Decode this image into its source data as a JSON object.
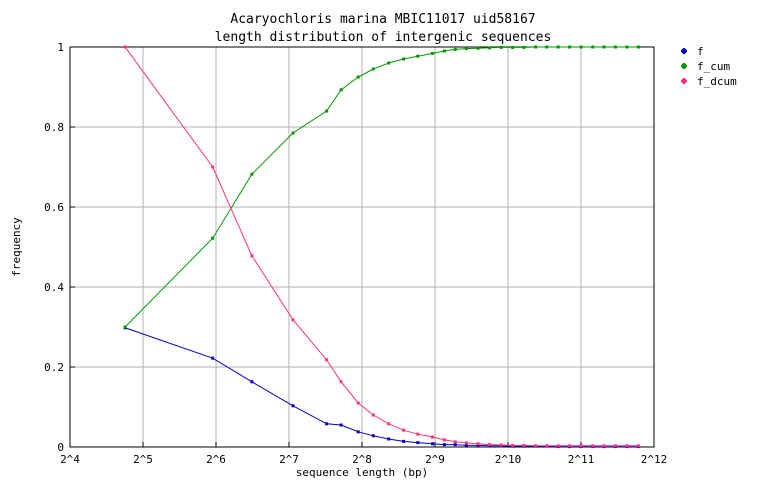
{
  "chart_data": {
    "type": "line",
    "title": "Acaryochloris marina MBIC11017 uid58167",
    "subtitle": "length distribution of intergenic sequences",
    "xlabel": "sequence length (bp)",
    "ylabel": "frequency",
    "xscale": "log2",
    "xlim": [
      16,
      4096
    ],
    "ylim": [
      0,
      1
    ],
    "grid": true,
    "legend_position": "top-right",
    "x_tick_labels": [
      "2^4",
      "2^5",
      "2^6",
      "2^7",
      "2^8",
      "2^9",
      "2^10",
      "2^11",
      "2^12"
    ],
    "y_tick_labels": [
      "0",
      "0.2",
      "0.4",
      "0.6",
      "0.8",
      "1"
    ],
    "series": [
      {
        "name": "f",
        "color": "#0000cc",
        "points": [
          [
            27,
            0.298
          ],
          [
            62,
            0.222
          ],
          [
            90,
            0.163
          ],
          [
            133,
            0.103
          ],
          [
            183,
            0.058
          ],
          [
            210,
            0.055
          ],
          [
            247,
            0.038
          ],
          [
            285,
            0.028
          ],
          [
            330,
            0.02
          ],
          [
            380,
            0.014
          ],
          [
            435,
            0.011
          ],
          [
            500,
            0.008
          ],
          [
            560,
            0.006
          ],
          [
            620,
            0.006
          ],
          [
            690,
            0.004
          ],
          [
            770,
            0.004
          ],
          [
            860,
            0.003
          ],
          [
            960,
            0.003
          ],
          [
            1070,
            0.002
          ],
          [
            1190,
            0.002
          ],
          [
            1330,
            0.002
          ],
          [
            1480,
            0.002
          ],
          [
            1650,
            0.001
          ],
          [
            1840,
            0.001
          ],
          [
            2050,
            0.001
          ],
          [
            2290,
            0.001
          ],
          [
            2550,
            0.001
          ],
          [
            2840,
            0.001
          ],
          [
            3170,
            0.001
          ],
          [
            3530,
            0.001
          ]
        ]
      },
      {
        "name": "f_cum",
        "color": "#009900",
        "points": [
          [
            27,
            0.3
          ],
          [
            62,
            0.522
          ],
          [
            90,
            0.682
          ],
          [
            133,
            0.785
          ],
          [
            183,
            0.84
          ],
          [
            210,
            0.893
          ],
          [
            247,
            0.925
          ],
          [
            285,
            0.945
          ],
          [
            330,
            0.96
          ],
          [
            380,
            0.97
          ],
          [
            435,
            0.977
          ],
          [
            500,
            0.984
          ],
          [
            560,
            0.99
          ],
          [
            620,
            0.994
          ],
          [
            690,
            0.996
          ],
          [
            770,
            0.997
          ],
          [
            860,
            0.998
          ],
          [
            960,
            0.999
          ],
          [
            1070,
            0.999
          ],
          [
            1190,
            0.999
          ],
          [
            1330,
            1.0
          ],
          [
            1480,
            1.0
          ],
          [
            1650,
            1.0
          ],
          [
            1840,
            1.0
          ],
          [
            2050,
            1.0
          ],
          [
            2290,
            1.0
          ],
          [
            2550,
            1.0
          ],
          [
            2840,
            1.0
          ],
          [
            3170,
            1.0
          ],
          [
            3530,
            1.0
          ]
        ]
      },
      {
        "name": "f_dcum",
        "color": "#ff3377",
        "points": [
          [
            27,
            1.0
          ],
          [
            62,
            0.7
          ],
          [
            90,
            0.478
          ],
          [
            133,
            0.318
          ],
          [
            183,
            0.218
          ],
          [
            210,
            0.163
          ],
          [
            247,
            0.11
          ],
          [
            285,
            0.08
          ],
          [
            330,
            0.058
          ],
          [
            380,
            0.042
          ],
          [
            435,
            0.032
          ],
          [
            500,
            0.025
          ],
          [
            560,
            0.018
          ],
          [
            620,
            0.013
          ],
          [
            690,
            0.01
          ],
          [
            770,
            0.008
          ],
          [
            860,
            0.006
          ],
          [
            960,
            0.005
          ],
          [
            1070,
            0.004
          ],
          [
            1190,
            0.004
          ],
          [
            1330,
            0.003
          ],
          [
            1480,
            0.003
          ],
          [
            1650,
            0.003
          ],
          [
            1840,
            0.003
          ],
          [
            2050,
            0.003
          ],
          [
            2290,
            0.003
          ],
          [
            2550,
            0.003
          ],
          [
            2840,
            0.003
          ],
          [
            3170,
            0.003
          ],
          [
            3530,
            0.003
          ]
        ]
      }
    ]
  }
}
